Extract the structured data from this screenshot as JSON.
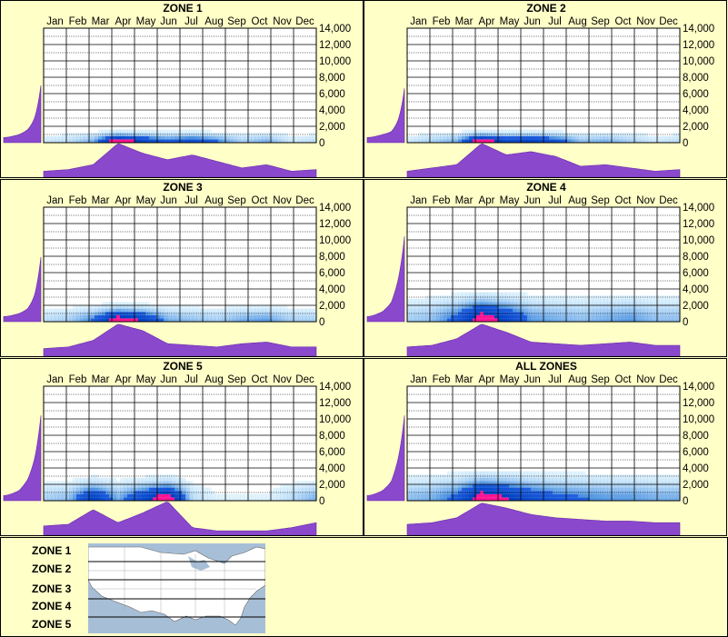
{
  "chart_data": [
    {
      "type": "heatmap",
      "title": "ZONE 1",
      "categories": [
        "Jan",
        "Feb",
        "Mar",
        "Apr",
        "May",
        "Jun",
        "Jul",
        "Aug",
        "Sep",
        "Oct",
        "Nov",
        "Dec"
      ],
      "y_ticks": [
        "0",
        "2,000",
        "4,000",
        "6,000",
        "8,000",
        "10,000",
        "12,000",
        "14,000"
      ],
      "ylim": [
        0,
        14000
      ],
      "monthly_profile": [
        0.1,
        0.15,
        0.3,
        0.95,
        0.65,
        0.45,
        0.6,
        0.4,
        0.2,
        0.3,
        0.1,
        0.15
      ],
      "elevation_profile": [
        0.05,
        0.08,
        0.12,
        0.18,
        0.28
      ],
      "spread": 1.0
    },
    {
      "type": "heatmap",
      "title": "ZONE 2",
      "categories": [
        "Jan",
        "Feb",
        "Mar",
        "Apr",
        "May",
        "Jun",
        "Jul",
        "Aug",
        "Sep",
        "Oct",
        "Nov",
        "Dec"
      ],
      "y_ticks": [
        "0",
        "2,000",
        "4,000",
        "6,000",
        "8,000",
        "10,000",
        "12,000",
        "14,000"
      ],
      "ylim": [
        0,
        14000
      ],
      "monthly_profile": [
        0.1,
        0.2,
        0.3,
        0.95,
        0.6,
        0.7,
        0.55,
        0.25,
        0.3,
        0.2,
        0.1,
        0.15
      ],
      "elevation_profile": [
        0.05,
        0.08,
        0.1,
        0.16,
        0.25
      ],
      "spread": 1.0
    },
    {
      "type": "heatmap",
      "title": "ZONE 3",
      "categories": [
        "Jan",
        "Feb",
        "Mar",
        "Apr",
        "May",
        "Jun",
        "Jul",
        "Aug",
        "Sep",
        "Oct",
        "Nov",
        "Dec"
      ],
      "y_ticks": [
        "0",
        "2,000",
        "4,000",
        "6,000",
        "8,000",
        "10,000",
        "12,000",
        "14,000"
      ],
      "ylim": [
        0,
        14000
      ],
      "monthly_profile": [
        0.15,
        0.2,
        0.4,
        0.9,
        0.7,
        0.3,
        0.25,
        0.2,
        0.3,
        0.35,
        0.2,
        0.2
      ],
      "elevation_profile": [
        0.05,
        0.08,
        0.12,
        0.2,
        0.35
      ],
      "spread": 1.5
    },
    {
      "type": "heatmap",
      "title": "ZONE 4",
      "categories": [
        "Jan",
        "Feb",
        "Mar",
        "Apr",
        "May",
        "Jun",
        "Jul",
        "Aug",
        "Sep",
        "Oct",
        "Nov",
        "Dec"
      ],
      "y_ticks": [
        "0",
        "2,000",
        "4,000",
        "6,000",
        "8,000",
        "10,000",
        "12,000",
        "14,000"
      ],
      "ylim": [
        0,
        14000
      ],
      "monthly_profile": [
        0.2,
        0.25,
        0.45,
        0.9,
        0.65,
        0.35,
        0.3,
        0.25,
        0.3,
        0.35,
        0.25,
        0.25
      ],
      "elevation_profile": [
        0.05,
        0.1,
        0.18,
        0.35,
        0.55
      ],
      "spread": 2.5
    },
    {
      "type": "heatmap",
      "title": "ZONE 5",
      "categories": [
        "Jan",
        "Feb",
        "Mar",
        "Apr",
        "May",
        "Jun",
        "Jul",
        "Aug",
        "Sep",
        "Oct",
        "Nov",
        "Dec"
      ],
      "y_ticks": [
        "0",
        "2,000",
        "4,000",
        "6,000",
        "8,000",
        "10,000",
        "12,000",
        "14,000"
      ],
      "ylim": [
        0,
        14000
      ],
      "monthly_profile": [
        0.2,
        0.25,
        0.7,
        0.3,
        0.6,
        0.95,
        0.15,
        0.05,
        0.05,
        0.05,
        0.15,
        0.3
      ],
      "elevation_profile": [
        0.05,
        0.1,
        0.2,
        0.35,
        0.55
      ],
      "spread": 2.0
    },
    {
      "type": "heatmap",
      "title": "ALL ZONES",
      "categories": [
        "Jan",
        "Feb",
        "Mar",
        "Apr",
        "May",
        "Jun",
        "Jul",
        "Aug",
        "Sep",
        "Oct",
        "Nov",
        "Dec"
      ],
      "y_ticks": [
        "0",
        "2,000",
        "4,000",
        "6,000",
        "8,000",
        "10,000",
        "12,000",
        "14,000"
      ],
      "ylim": [
        0,
        14000
      ],
      "monthly_profile": [
        0.25,
        0.3,
        0.45,
        0.9,
        0.75,
        0.55,
        0.45,
        0.4,
        0.35,
        0.35,
        0.3,
        0.3
      ],
      "elevation_profile": [
        0.05,
        0.1,
        0.18,
        0.35,
        0.55
      ],
      "spread": 2.5
    }
  ],
  "legend": {
    "zones": [
      "ZONE 1",
      "ZONE 2",
      "ZONE 3",
      "ZONE 4",
      "ZONE 5"
    ],
    "icons": [
      "us-map-icon"
    ]
  },
  "colors": {
    "background": "#ffffc8",
    "profile_fill": "#8a48cc",
    "profile_stroke": "#6a2ab0",
    "heat_low": "#c8eeff",
    "heat_mid": "#0040c0",
    "heat_high": "#ff1493"
  }
}
